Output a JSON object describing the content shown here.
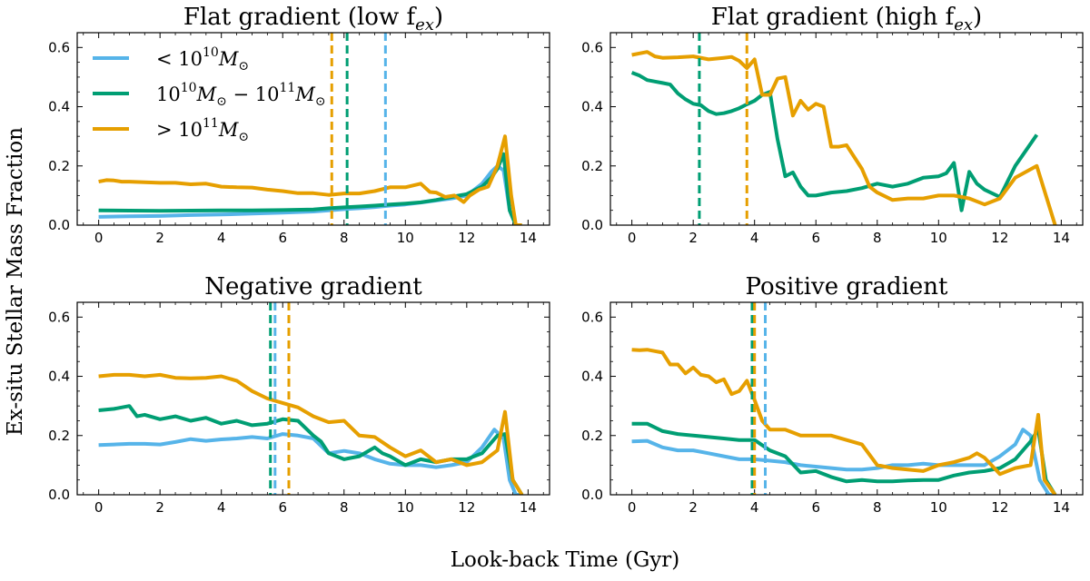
{
  "figure": {
    "xlabel": "Look-back Time (Gyr)",
    "ylabel": "Ex-situ Stellar Mass Fraction"
  },
  "legend": {
    "location": "upper-left of first panel",
    "entries": [
      {
        "key": "low",
        "label_base": "< 10",
        "label_sup": "10",
        "label_tail": "M",
        "label_sub": "⊙"
      },
      {
        "key": "mid",
        "label_base": "10",
        "label_sup": "10",
        "label_mid": "M",
        "label_sub": "⊙",
        "label_mid2": " − 10",
        "label_sup2": "11",
        "label_tail": "M",
        "label_sub2": "⊙"
      },
      {
        "key": "high",
        "label_base": "> 10",
        "label_sup": "11",
        "label_tail": "M",
        "label_sub": "⊙"
      }
    ]
  },
  "colors": {
    "low": "#56b4e9",
    "mid": "#009e73",
    "high": "#e69f00"
  },
  "chart_data": [
    {
      "type": "line",
      "title": "Flat gradient (low f",
      "title_sub": "ex",
      "title_end": ")",
      "xlim": [
        -0.7,
        14.7
      ],
      "ylim": [
        0,
        0.65
      ],
      "xticks": [
        0,
        2,
        4,
        6,
        8,
        10,
        12,
        14
      ],
      "yticks": [
        0.0,
        0.2,
        0.4,
        0.6
      ],
      "show_legend": true,
      "vlines": [
        {
          "series": "high",
          "x": 7.6
        },
        {
          "series": "mid",
          "x": 8.1
        },
        {
          "series": "low",
          "x": 9.35
        }
      ],
      "series": [
        {
          "name": "low",
          "x": [
            0,
            1,
            2,
            3,
            4,
            5,
            6,
            7,
            7.5,
            8,
            8.5,
            9,
            9.5,
            10,
            10.5,
            11,
            11.5,
            12,
            12.5,
            12.8,
            13.0,
            13.2,
            13.4,
            13.6,
            13.8
          ],
          "y": [
            0.028,
            0.03,
            0.031,
            0.034,
            0.036,
            0.039,
            0.042,
            0.046,
            0.05,
            0.054,
            0.057,
            0.061,
            0.066,
            0.07,
            0.076,
            0.083,
            0.09,
            0.1,
            0.14,
            0.18,
            0.2,
            0.185,
            0.05,
            0,
            0
          ]
        },
        {
          "name": "mid",
          "x": [
            0,
            1,
            2,
            3,
            4,
            5,
            6,
            7,
            7.5,
            8,
            8.5,
            9,
            9.5,
            10,
            10.5,
            11,
            11.5,
            12,
            12.5,
            12.8,
            13.0,
            13.2,
            13.4,
            13.6,
            13.8
          ],
          "y": [
            0.05,
            0.049,
            0.048,
            0.049,
            0.05,
            0.05,
            0.051,
            0.053,
            0.057,
            0.06,
            0.063,
            0.066,
            0.07,
            0.073,
            0.077,
            0.085,
            0.095,
            0.105,
            0.13,
            0.16,
            0.19,
            0.24,
            0.05,
            0,
            0
          ]
        },
        {
          "name": "high",
          "x": [
            0,
            0.25,
            0.5,
            0.75,
            1,
            1.5,
            2,
            2.5,
            3,
            3.5,
            4,
            4.5,
            5,
            5.5,
            6,
            6.5,
            7,
            7.5,
            8,
            8.5,
            9,
            9.5,
            10,
            10.5,
            10.8,
            11,
            11.3,
            11.6,
            11.9,
            12.1,
            12.4,
            12.7,
            13.0,
            13.25,
            13.45,
            13.6,
            13.8
          ],
          "y": [
            0.147,
            0.152,
            0.151,
            0.147,
            0.147,
            0.145,
            0.143,
            0.143,
            0.138,
            0.14,
            0.13,
            0.128,
            0.127,
            0.12,
            0.115,
            0.108,
            0.108,
            0.102,
            0.107,
            0.107,
            0.115,
            0.128,
            0.128,
            0.14,
            0.112,
            0.11,
            0.095,
            0.1,
            0.078,
            0.1,
            0.12,
            0.13,
            0.2,
            0.3,
            0.1,
            0,
            0
          ]
        }
      ]
    },
    {
      "type": "line",
      "title": "Flat gradient (high f",
      "title_sub": "ex",
      "title_end": ")",
      "xlim": [
        -0.7,
        14.7
      ],
      "ylim": [
        0,
        0.65
      ],
      "xticks": [
        0,
        2,
        4,
        6,
        8,
        10,
        12,
        14
      ],
      "yticks": [
        0.0,
        0.2,
        0.4,
        0.6
      ],
      "show_legend": false,
      "vlines": [
        {
          "series": "mid",
          "x": 2.2
        },
        {
          "series": "high",
          "x": 3.75
        }
      ],
      "series": [
        {
          "name": "mid",
          "x": [
            0,
            0.25,
            0.5,
            0.75,
            1,
            1.25,
            1.5,
            1.75,
            2,
            2.25,
            2.5,
            2.75,
            3,
            3.25,
            3.5,
            3.75,
            4,
            4.25,
            4.5,
            4.75,
            5,
            5.25,
            5.5,
            5.75,
            6,
            6.5,
            7,
            7.5,
            8,
            8.5,
            9,
            9.5,
            10,
            10.25,
            10.5,
            10.75,
            11,
            11.25,
            11.5,
            12,
            12.5,
            13.2
          ],
          "y": [
            0.515,
            0.505,
            0.49,
            0.485,
            0.48,
            0.475,
            0.445,
            0.425,
            0.41,
            0.405,
            0.385,
            0.375,
            0.378,
            0.385,
            0.395,
            0.408,
            0.42,
            0.44,
            0.45,
            0.29,
            0.165,
            0.178,
            0.13,
            0.1,
            0.1,
            0.11,
            0.115,
            0.125,
            0.14,
            0.13,
            0.14,
            0.16,
            0.165,
            0.175,
            0.21,
            0.05,
            0.18,
            0.14,
            0.12,
            0.095,
            0.2,
            0.305
          ]
        },
        {
          "name": "high",
          "x": [
            0,
            0.25,
            0.5,
            0.75,
            1,
            1.5,
            2,
            2.5,
            3,
            3.25,
            3.5,
            3.75,
            4,
            4.25,
            4.5,
            4.75,
            5,
            5.25,
            5.5,
            5.75,
            6,
            6.25,
            6.5,
            6.75,
            7,
            7.5,
            7.75,
            8,
            8.5,
            9,
            9.5,
            10,
            10.5,
            11,
            11.5,
            12,
            12.5,
            13.2,
            13.8
          ],
          "y": [
            0.575,
            0.58,
            0.585,
            0.57,
            0.565,
            0.567,
            0.57,
            0.56,
            0.565,
            0.568,
            0.555,
            0.53,
            0.56,
            0.44,
            0.44,
            0.495,
            0.5,
            0.37,
            0.42,
            0.39,
            0.41,
            0.4,
            0.265,
            0.265,
            0.27,
            0.19,
            0.13,
            0.11,
            0.085,
            0.09,
            0.09,
            0.1,
            0.1,
            0.09,
            0.07,
            0.09,
            0.16,
            0.2,
            0
          ]
        }
      ]
    },
    {
      "type": "line",
      "title": "Negative gradient",
      "xlim": [
        -0.7,
        14.7
      ],
      "ylim": [
        0,
        0.65
      ],
      "xticks": [
        0,
        2,
        4,
        6,
        8,
        10,
        12,
        14
      ],
      "yticks": [
        0.0,
        0.2,
        0.4,
        0.6
      ],
      "show_legend": false,
      "vlines": [
        {
          "series": "mid",
          "x": 5.6
        },
        {
          "series": "low",
          "x": 5.75
        },
        {
          "series": "high",
          "x": 6.2
        }
      ],
      "series": [
        {
          "name": "low",
          "x": [
            0,
            0.5,
            1,
            1.5,
            2,
            2.5,
            3,
            3.5,
            4,
            4.5,
            5,
            5.5,
            6,
            6.5,
            7,
            7.5,
            8,
            8.5,
            9,
            9.5,
            10,
            10.5,
            11,
            11.5,
            12,
            12.5,
            12.9,
            13.2,
            13.4,
            13.6,
            13.8
          ],
          "y": [
            0.168,
            0.17,
            0.172,
            0.172,
            0.17,
            0.178,
            0.188,
            0.182,
            0.187,
            0.19,
            0.195,
            0.19,
            0.205,
            0.2,
            0.19,
            0.14,
            0.148,
            0.14,
            0.12,
            0.105,
            0.1,
            0.1,
            0.093,
            0.1,
            0.11,
            0.16,
            0.22,
            0.19,
            0.05,
            0,
            0
          ]
        },
        {
          "name": "mid",
          "x": [
            0,
            0.5,
            1,
            1.25,
            1.5,
            2,
            2.5,
            3,
            3.5,
            4,
            4.5,
            5,
            5.5,
            6,
            6.5,
            7,
            7.25,
            7.5,
            8,
            8.5,
            9,
            9.25,
            9.5,
            10,
            10.5,
            11,
            11.5,
            12,
            12.5,
            13.0,
            13.25,
            13.5,
            13.8
          ],
          "y": [
            0.285,
            0.29,
            0.3,
            0.265,
            0.27,
            0.255,
            0.265,
            0.25,
            0.26,
            0.24,
            0.25,
            0.235,
            0.24,
            0.255,
            0.25,
            0.2,
            0.18,
            0.14,
            0.12,
            0.13,
            0.16,
            0.14,
            0.13,
            0.1,
            0.12,
            0.11,
            0.12,
            0.12,
            0.14,
            0.2,
            0.205,
            0.05,
            0
          ]
        },
        {
          "name": "high",
          "x": [
            0,
            0.5,
            1,
            1.5,
            2,
            2.5,
            3,
            3.5,
            4,
            4.5,
            5,
            5.5,
            6,
            6.5,
            7,
            7.5,
            8,
            8.5,
            9,
            9.5,
            10,
            10.5,
            11,
            11.5,
            12,
            12.5,
            13.0,
            13.25,
            13.5,
            13.8
          ],
          "y": [
            0.4,
            0.405,
            0.405,
            0.4,
            0.405,
            0.395,
            0.393,
            0.395,
            0.4,
            0.385,
            0.35,
            0.325,
            0.31,
            0.295,
            0.265,
            0.245,
            0.25,
            0.2,
            0.195,
            0.16,
            0.13,
            0.15,
            0.11,
            0.12,
            0.1,
            0.11,
            0.15,
            0.28,
            0.05,
            0
          ]
        }
      ]
    },
    {
      "type": "line",
      "title": "Positive gradient",
      "xlim": [
        -0.7,
        14.7
      ],
      "ylim": [
        0,
        0.65
      ],
      "xticks": [
        0,
        2,
        4,
        6,
        8,
        10,
        12,
        14
      ],
      "yticks": [
        0.0,
        0.2,
        0.4,
        0.6
      ],
      "show_legend": false,
      "vlines": [
        {
          "series": "mid",
          "x": 3.92
        },
        {
          "series": "high",
          "x": 4.0
        },
        {
          "series": "low",
          "x": 4.35
        }
      ],
      "series": [
        {
          "name": "low",
          "x": [
            0,
            0.5,
            1,
            1.5,
            2,
            2.5,
            3,
            3.5,
            4,
            4.5,
            5,
            5.5,
            6,
            6.5,
            7,
            7.5,
            8,
            8.5,
            9,
            9.5,
            10,
            10.5,
            11,
            11.5,
            12,
            12.5,
            12.75,
            13.0,
            13.3,
            13.6,
            13.8
          ],
          "y": [
            0.18,
            0.182,
            0.16,
            0.15,
            0.15,
            0.14,
            0.13,
            0.12,
            0.12,
            0.115,
            0.11,
            0.1,
            0.095,
            0.09,
            0.085,
            0.085,
            0.09,
            0.1,
            0.1,
            0.105,
            0.1,
            0.1,
            0.1,
            0.1,
            0.13,
            0.17,
            0.22,
            0.2,
            0.05,
            0,
            0
          ]
        },
        {
          "name": "mid",
          "x": [
            0,
            0.5,
            1,
            1.5,
            2,
            2.5,
            3,
            3.5,
            4,
            4.5,
            5,
            5.5,
            6,
            6.5,
            7,
            7.5,
            8,
            8.5,
            9,
            9.5,
            10,
            10.5,
            11,
            11.5,
            12,
            12.5,
            13.0,
            13.25,
            13.5,
            13.8
          ],
          "y": [
            0.24,
            0.24,
            0.215,
            0.205,
            0.2,
            0.195,
            0.19,
            0.185,
            0.185,
            0.15,
            0.13,
            0.075,
            0.08,
            0.06,
            0.045,
            0.05,
            0.045,
            0.045,
            0.048,
            0.05,
            0.05,
            0.065,
            0.075,
            0.08,
            0.09,
            0.12,
            0.18,
            0.22,
            0.05,
            0
          ]
        },
        {
          "name": "high",
          "x": [
            0,
            0.25,
            0.5,
            0.75,
            1,
            1.25,
            1.5,
            1.75,
            2,
            2.25,
            2.5,
            2.75,
            3,
            3.25,
            3.5,
            3.75,
            4,
            4.25,
            4.5,
            5,
            5.5,
            6,
            6.5,
            7,
            7.5,
            8,
            8.5,
            9,
            9.5,
            10,
            10.5,
            11,
            11.25,
            11.5,
            12,
            12.5,
            13.0,
            13.25,
            13.45,
            13.8
          ],
          "y": [
            0.49,
            0.488,
            0.49,
            0.485,
            0.48,
            0.44,
            0.44,
            0.41,
            0.43,
            0.405,
            0.4,
            0.38,
            0.39,
            0.34,
            0.35,
            0.385,
            0.32,
            0.25,
            0.22,
            0.22,
            0.2,
            0.2,
            0.2,
            0.185,
            0.17,
            0.1,
            0.09,
            0.085,
            0.08,
            0.1,
            0.11,
            0.125,
            0.14,
            0.125,
            0.07,
            0.09,
            0.1,
            0.27,
            0.05,
            0
          ]
        }
      ]
    }
  ]
}
